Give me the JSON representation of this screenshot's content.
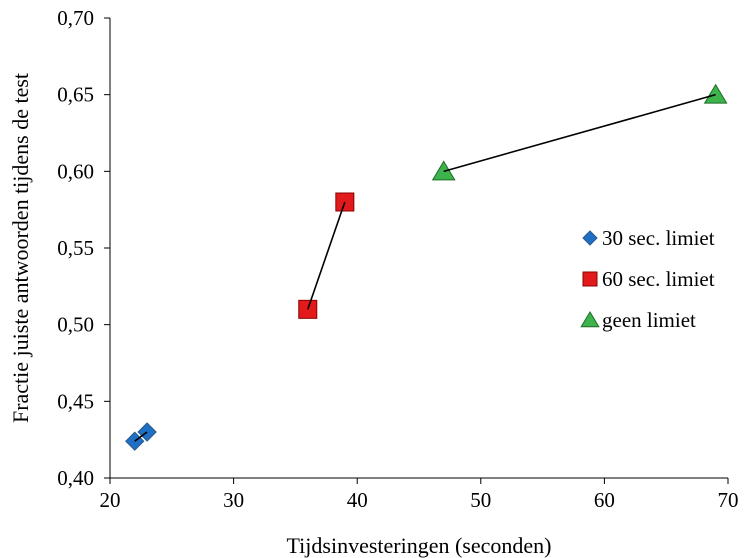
{
  "chart_data": {
    "type": "scatter",
    "xlabel": "Tijdsinvesteringen (seconden)",
    "ylabel": "Fractie juiste antwoorden tijdens de test",
    "xlim": [
      20,
      70
    ],
    "ylim": [
      0.4,
      0.7
    ],
    "x_ticks": [
      20,
      30,
      40,
      50,
      60,
      70
    ],
    "x_tick_labels": [
      "20",
      "30",
      "40",
      "50",
      "60",
      "70"
    ],
    "y_ticks": [
      0.4,
      0.45,
      0.5,
      0.55,
      0.6,
      0.65,
      0.7
    ],
    "y_tick_labels": [
      "0,40",
      "0,45",
      "0,50",
      "0,55",
      "0,60",
      "0,65",
      "0,70"
    ],
    "grid": false,
    "legend_position": "right",
    "connect_points_within_series": true,
    "series": [
      {
        "name": "30 sec. limiet",
        "marker": "diamond",
        "color": "#1f6fc5",
        "points": [
          {
            "x": 22.0,
            "y": 0.424
          },
          {
            "x": 23.0,
            "y": 0.43
          }
        ]
      },
      {
        "name": "60 sec. limiet",
        "marker": "square",
        "color": "#e31a1c",
        "points": [
          {
            "x": 36.0,
            "y": 0.51
          },
          {
            "x": 39.0,
            "y": 0.58
          }
        ]
      },
      {
        "name": "geen limiet",
        "marker": "triangle",
        "color": "#3cb44b",
        "points": [
          {
            "x": 47.0,
            "y": 0.6
          },
          {
            "x": 69.0,
            "y": 0.65
          }
        ]
      }
    ]
  }
}
